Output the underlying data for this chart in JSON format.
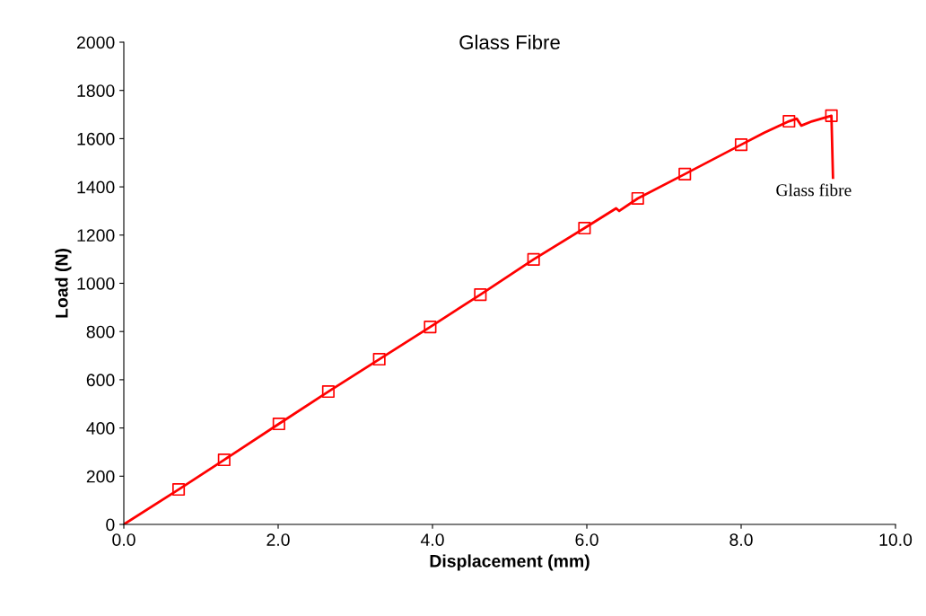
{
  "chart_data": {
    "type": "line",
    "title": "Glass Fibre",
    "xlabel": "Displacement (mm)",
    "ylabel": "Load (N)",
    "xlim": [
      0,
      10
    ],
    "ylim": [
      0,
      2000
    ],
    "xticks": [
      {
        "value": 0,
        "label": "0.0"
      },
      {
        "value": 2,
        "label": "2.0"
      },
      {
        "value": 4,
        "label": "4.0"
      },
      {
        "value": 6,
        "label": "6.0"
      },
      {
        "value": 8,
        "label": "8.0"
      },
      {
        "value": 10,
        "label": "10.0"
      }
    ],
    "yticks": [
      0,
      200,
      400,
      600,
      800,
      1000,
      1200,
      1400,
      1600,
      1800,
      2000
    ],
    "grid": false,
    "legend": false,
    "series": [
      {
        "color": "#ff0000",
        "marker": "none",
        "x": [
          0,
          0.71,
          1.3,
          2.01,
          2.65,
          3.31,
          3.97,
          4.62,
          5.31,
          5.97,
          6.38,
          6.42,
          6.66,
          7.27,
          8.0,
          8.3,
          8.62,
          8.72,
          8.78,
          8.92,
          9.17,
          9.19
        ],
        "values": [
          0,
          145,
          268,
          417,
          551,
          685,
          819,
          953,
          1099,
          1229,
          1311,
          1300,
          1352,
          1453,
          1575,
          1625,
          1672,
          1683,
          1654,
          1672,
          1695,
          1438
        ]
      },
      {
        "type": "scatter",
        "color": "#ff0000",
        "marker": "square",
        "x": [
          0.71,
          1.3,
          2.01,
          2.65,
          3.31,
          3.97,
          4.62,
          5.31,
          5.97,
          6.66,
          7.27,
          8.0,
          8.62,
          9.17
        ],
        "values": [
          145,
          268,
          417,
          551,
          685,
          819,
          953,
          1099,
          1229,
          1352,
          1453,
          1575,
          1672,
          1695
        ]
      }
    ],
    "annotations": [
      "Glass fibre"
    ]
  }
}
